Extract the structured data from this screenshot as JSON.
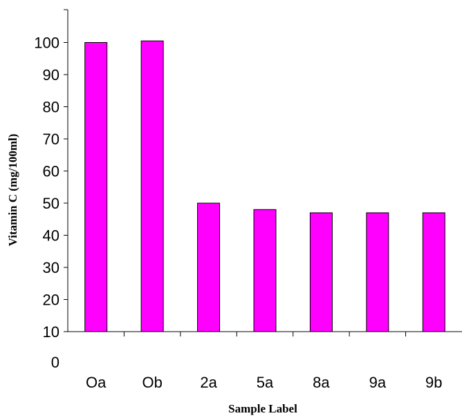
{
  "chart_data": {
    "type": "bar",
    "title": "",
    "xlabel": "Sample Label",
    "ylabel": "Vitamin C (mg/100ml)",
    "categories": [
      "Oa",
      "Ob",
      "2a",
      "5a",
      "8a",
      "9a",
      "9b"
    ],
    "values": [
      100,
      100.5,
      50,
      48,
      47,
      47,
      47
    ],
    "yticks": [
      "0",
      "10",
      "20",
      "30",
      "40",
      "50",
      "60",
      "70",
      "80",
      "90",
      "100"
    ],
    "ylim": [
      10,
      112
    ],
    "grid": false,
    "legend": "none",
    "colors": {
      "bar_fill": "#ff00ff",
      "bar_stroke": "#000000",
      "axis": "#000000"
    }
  }
}
